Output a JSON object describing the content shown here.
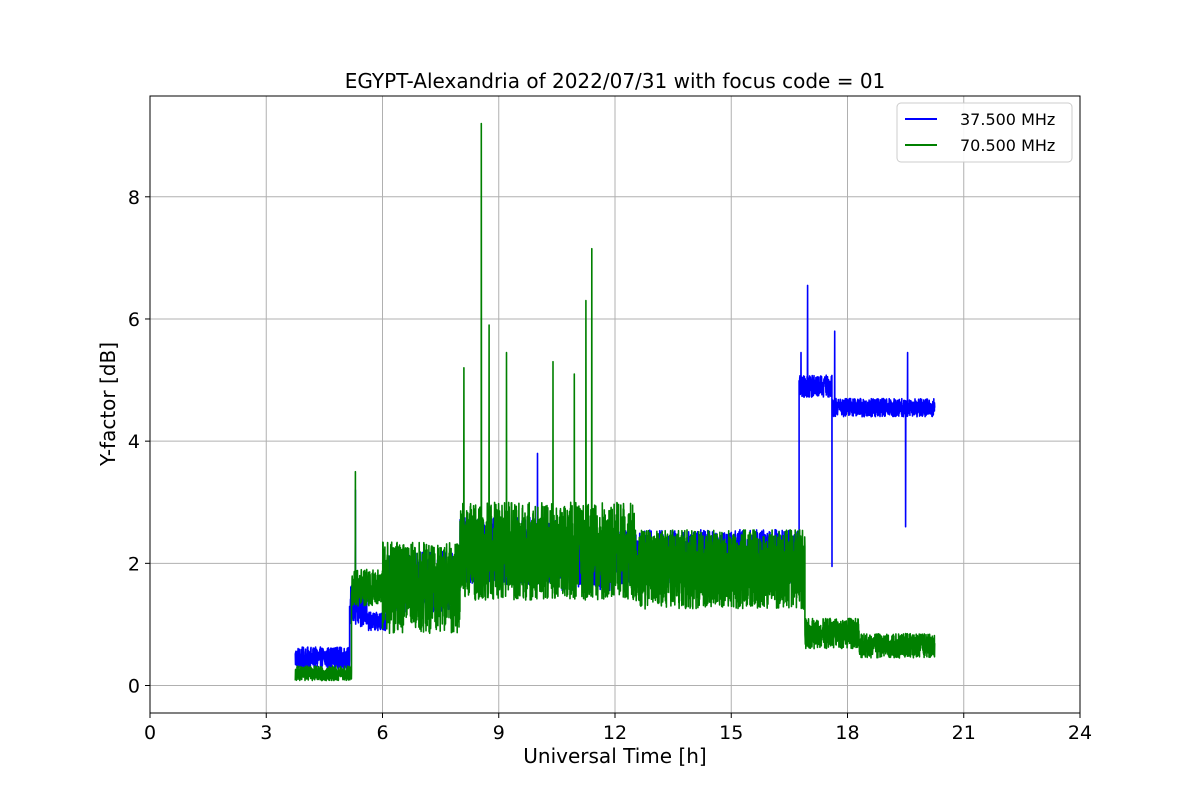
{
  "chart_data": {
    "type": "line",
    "title": "EGYPT-Alexandria of 2022/07/31 with focus code = 01",
    "xlabel": "Universal Time [h]",
    "ylabel": "Y-factor [dB]",
    "xlim": [
      0,
      24
    ],
    "ylim": [
      -0.45,
      9.65
    ],
    "xticks": [
      0,
      3,
      6,
      9,
      12,
      15,
      18,
      21,
      24
    ],
    "yticks": [
      0,
      2,
      4,
      6,
      8
    ],
    "grid": true,
    "legend_position": "top-right",
    "series": [
      {
        "name": "37.500 MHz",
        "color": "#0000ff",
        "segments": [
          {
            "x_start": 3.75,
            "x_end": 5.15,
            "base": 0.45,
            "amp": 0.18
          },
          {
            "x_start": 5.15,
            "x_end": 5.6,
            "base": 1.3,
            "amp": 0.35
          },
          {
            "x_start": 5.6,
            "x_end": 6.1,
            "base": 1.05,
            "amp": 0.15
          },
          {
            "x_start": 6.1,
            "x_end": 8.0,
            "base": 1.7,
            "amp": 0.5
          },
          {
            "x_start": 8.0,
            "x_end": 10.5,
            "base": 2.2,
            "amp": 0.55
          },
          {
            "x_start": 10.5,
            "x_end": 12.0,
            "base": 2.0,
            "amp": 0.45
          },
          {
            "x_start": 12.0,
            "x_end": 16.75,
            "base": 2.1,
            "amp": 0.45
          },
          {
            "x_start": 16.75,
            "x_end": 17.6,
            "base": 4.9,
            "amp": 0.18
          },
          {
            "x_start": 17.6,
            "x_end": 20.25,
            "base": 4.55,
            "amp": 0.15
          }
        ],
        "features": [
          {
            "x": 5.3,
            "y": 3.2
          },
          {
            "x": 10.0,
            "y": 3.8
          },
          {
            "x": 16.8,
            "y": 5.45
          },
          {
            "x": 16.97,
            "y": 6.55
          },
          {
            "x": 17.6,
            "y": 1.95
          },
          {
            "x": 17.67,
            "y": 5.8
          },
          {
            "x": 19.5,
            "y": 2.6
          },
          {
            "x": 19.55,
            "y": 5.45
          }
        ]
      },
      {
        "name": "70.500 MHz",
        "color": "#008000",
        "segments": [
          {
            "x_start": 3.75,
            "x_end": 5.2,
            "base": 0.2,
            "amp": 0.12
          },
          {
            "x_start": 5.2,
            "x_end": 6.0,
            "base": 1.6,
            "amp": 0.3
          },
          {
            "x_start": 6.0,
            "x_end": 8.0,
            "base": 1.6,
            "amp": 0.75
          },
          {
            "x_start": 8.0,
            "x_end": 12.5,
            "base": 2.2,
            "amp": 0.8
          },
          {
            "x_start": 12.5,
            "x_end": 16.9,
            "base": 1.9,
            "amp": 0.65
          },
          {
            "x_start": 16.9,
            "x_end": 18.3,
            "base": 0.85,
            "amp": 0.25
          },
          {
            "x_start": 18.3,
            "x_end": 20.25,
            "base": 0.65,
            "amp": 0.2
          }
        ],
        "features": [
          {
            "x": 5.3,
            "y": 3.5
          },
          {
            "x": 8.1,
            "y": 5.2
          },
          {
            "x": 8.55,
            "y": 9.2
          },
          {
            "x": 8.75,
            "y": 5.9
          },
          {
            "x": 9.2,
            "y": 5.45
          },
          {
            "x": 10.4,
            "y": 5.3
          },
          {
            "x": 10.95,
            "y": 5.1
          },
          {
            "x": 11.25,
            "y": 6.3
          },
          {
            "x": 11.4,
            "y": 7.15
          }
        ]
      }
    ]
  }
}
